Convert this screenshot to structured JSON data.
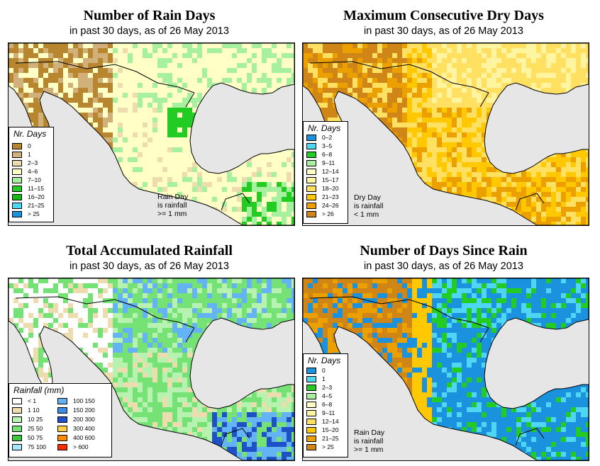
{
  "panels": [
    {
      "title": "Number of Rain Days",
      "subtitle": "in past 30 days, as of  26 May 2013",
      "legend_title": "Nr. Days",
      "legend": [
        {
          "label": "0",
          "color": "#b8862f"
        },
        {
          "label": "1",
          "color": "#d1b07a"
        },
        {
          "label": "2–3",
          "color": "#ecdcae"
        },
        {
          "label": "4–6",
          "color": "#ffffc6"
        },
        {
          "label": "7–10",
          "color": "#a6f0a0"
        },
        {
          "label": "11–15",
          "color": "#22cc22"
        },
        {
          "label": "16–20",
          "color": "#18b818"
        },
        {
          "label": "21–25",
          "color": "#50d6f5"
        },
        {
          "label": "> 25",
          "color": "#1b92de"
        }
      ],
      "note": [
        "Rain Day",
        "is rainfall",
        ">= 1 mm"
      ],
      "palette": [
        "#b8862f",
        "#d1b07a",
        "#ecdcae",
        "#ffffc6",
        "#a6f0a0",
        "#22cc22"
      ]
    },
    {
      "title": "Maximum Consecutive Dry Days",
      "subtitle": "in past 30 days, as of  26 May 2013",
      "legend_title": "Nr. Days",
      "legend": [
        {
          "label": "0–2",
          "color": "#1b92de"
        },
        {
          "label": "3–5",
          "color": "#50d6f5"
        },
        {
          "label": "6–8",
          "color": "#22cc22"
        },
        {
          "label": "9–11",
          "color": "#a6f0a0"
        },
        {
          "label": "12–14",
          "color": "#ffffc6"
        },
        {
          "label": "15–17",
          "color": "#fff5a0"
        },
        {
          "label": "18–20",
          "color": "#ffe060"
        },
        {
          "label": "21–23",
          "color": "#ffc800"
        },
        {
          "label": "24–26",
          "color": "#eba000"
        },
        {
          "label": "> 26",
          "color": "#cf8616"
        }
      ],
      "note": [
        "Dry Day",
        "is rainfall",
        "< 1 mm"
      ],
      "palette": [
        "#cf8616",
        "#eba000",
        "#ffc800",
        "#ffe060",
        "#fff5a0",
        "#ffffc6"
      ]
    },
    {
      "title": "Total Accumulated Rainfall",
      "subtitle": "in past 30 days, as of  26 May 2013",
      "legend_title": "Rainfall (mm)",
      "legend": [
        {
          "label": "< 1",
          "color": "#ffffff"
        },
        {
          "label": "1    10",
          "color": "#ecdcae"
        },
        {
          "label": "10    25",
          "color": "#b8f2b0"
        },
        {
          "label": "25    50",
          "color": "#74e274"
        },
        {
          "label": "50    75",
          "color": "#3dc83d"
        },
        {
          "label": "75  100",
          "color": "#a8e8ff"
        },
        {
          "label": "100  150",
          "color": "#64b4f5"
        },
        {
          "label": "150  200",
          "color": "#3c8ce6"
        },
        {
          "label": "200  300",
          "color": "#1e50c8"
        },
        {
          "label": "300  400",
          "color": "#ffd24a"
        },
        {
          "label": "400  600",
          "color": "#ff8c00"
        },
        {
          "label": "> 600",
          "color": "#ff2a00"
        }
      ],
      "note": [],
      "palette": [
        "#ffffff",
        "#ecdcae",
        "#b8f2b0",
        "#74e274",
        "#64b4f5",
        "#1e50c8"
      ]
    },
    {
      "title": "Number of Days Since Rain",
      "subtitle": "in past 30 days, as of  26 May 2013",
      "legend_title": "Nr. Days",
      "legend": [
        {
          "label": "0",
          "color": "#1b92de"
        },
        {
          "label": "1",
          "color": "#50d6f5"
        },
        {
          "label": "2–3",
          "color": "#22cc22"
        },
        {
          "label": "4–5",
          "color": "#a6f0a0"
        },
        {
          "label": "6–8",
          "color": "#ffffc6"
        },
        {
          "label": "9–11",
          "color": "#fff5a0"
        },
        {
          "label": "12–14",
          "color": "#ffe060"
        },
        {
          "label": "15–20",
          "color": "#ffc800"
        },
        {
          "label": "21–25",
          "color": "#eba000"
        },
        {
          "label": "> 25",
          "color": "#cf8616"
        }
      ],
      "note": [
        "Rain Day",
        "is rainfall",
        ">= 1 mm"
      ],
      "palette": [
        "#cf8616",
        "#eba000",
        "#ffc800",
        "#1b92de",
        "#50d6f5",
        "#22cc22"
      ]
    }
  ]
}
